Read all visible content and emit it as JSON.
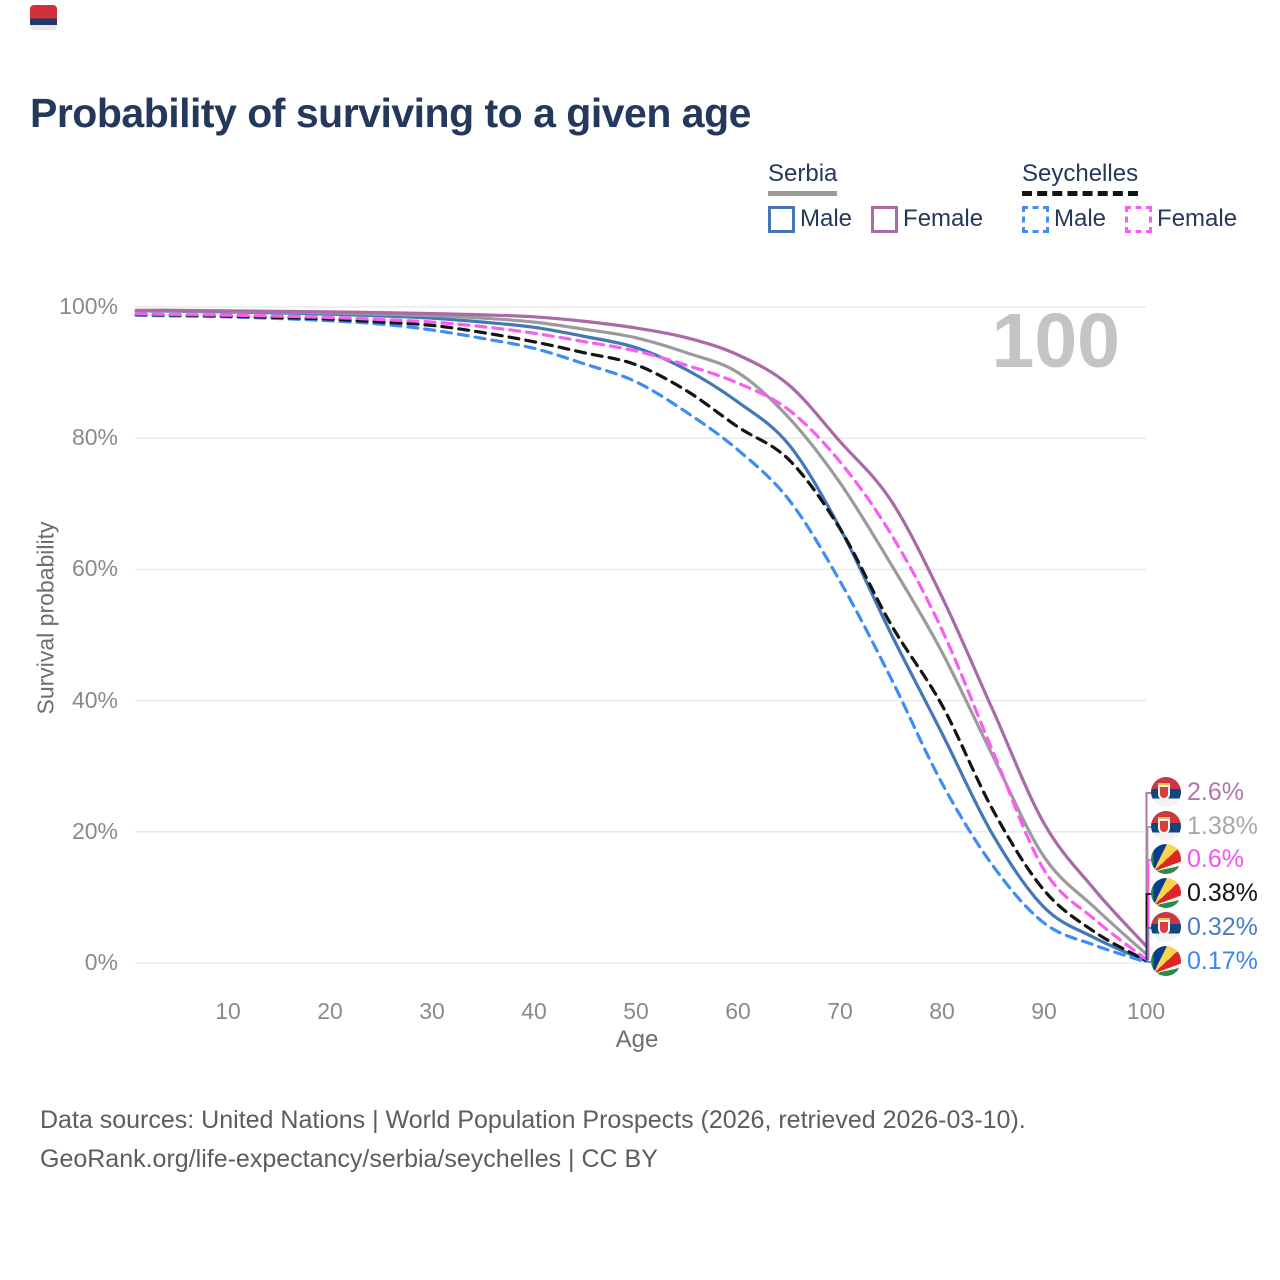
{
  "title": {
    "text": "Probability of surviving to a given age",
    "color": "#24385c"
  },
  "watermark": "100",
  "legend": {
    "groups": [
      {
        "label": "Serbia",
        "line_style": "solid",
        "line_color": "#9b9b9b",
        "items": [
          {
            "label": "Male",
            "color": "#4377b8",
            "dashed": false
          },
          {
            "label": "Female",
            "color": "#a96aa6",
            "dashed": false
          }
        ]
      },
      {
        "label": "Seychelles",
        "line_style": "dashed",
        "line_color": "#141414",
        "items": [
          {
            "label": "Male",
            "color": "#3f8df2",
            "dashed": true
          },
          {
            "label": "Female",
            "color": "#f95ef0",
            "dashed": true
          }
        ]
      }
    ]
  },
  "chart_data": {
    "type": "line",
    "title": "Probability of surviving to a given age",
    "xlabel": "Age",
    "ylabel": "Survival probability",
    "x_ticks": [
      10,
      20,
      30,
      40,
      50,
      60,
      70,
      80,
      90,
      100
    ],
    "y_ticks": [
      {
        "value": 0,
        "label": "0%"
      },
      {
        "value": 20,
        "label": "20%"
      },
      {
        "value": 40,
        "label": "40%"
      },
      {
        "value": 60,
        "label": "60%"
      },
      {
        "value": 80,
        "label": "80%"
      },
      {
        "value": 100,
        "label": "100%"
      }
    ],
    "xlim": [
      1,
      100
    ],
    "ylim": [
      0,
      100
    ],
    "grid": "horizontal-only",
    "ages": [
      1,
      5,
      10,
      15,
      20,
      25,
      30,
      35,
      40,
      45,
      50,
      55,
      60,
      65,
      70,
      75,
      80,
      85,
      90,
      95,
      100
    ],
    "series": [
      {
        "name": "Serbia Male",
        "country": "Serbia",
        "sex": "Male",
        "style": "solid",
        "color": "#4377b8",
        "values": [
          99.4,
          99.35,
          99.25,
          99.1,
          98.9,
          98.65,
          98.3,
          97.7,
          96.9,
          95.5,
          93.8,
          90.4,
          85.5,
          79.0,
          66.3,
          50.2,
          35.0,
          19.5,
          8.5,
          3.8,
          0.32
        ]
      },
      {
        "name": "Serbia",
        "country": "Serbia",
        "sex": "All",
        "style": "solid",
        "color": "#9b9b9b",
        "values": [
          99.45,
          99.4,
          99.35,
          99.25,
          99.1,
          98.9,
          98.7,
          98.3,
          97.7,
          96.6,
          95.3,
          93.0,
          90.0,
          83.1,
          73.2,
          60.8,
          47.4,
          31.5,
          16.2,
          8.4,
          1.38
        ]
      },
      {
        "name": "Seychelles Male",
        "country": "Seychelles",
        "sex": "Male",
        "style": "dashed",
        "color": "#3f8df2",
        "values": [
          98.75,
          98.65,
          98.5,
          98.25,
          97.9,
          97.4,
          96.5,
          95.2,
          93.7,
          91.3,
          88.6,
          83.9,
          78.2,
          70.6,
          58.2,
          43.4,
          27.4,
          14.8,
          6.1,
          2.7,
          0.17
        ]
      },
      {
        "name": "Seychelles",
        "country": "Seychelles",
        "sex": "All",
        "style": "dashed",
        "color": "#141414",
        "values": [
          98.85,
          98.75,
          98.6,
          98.4,
          98.15,
          97.7,
          97.2,
          96.1,
          94.7,
          93.0,
          91.2,
          87.2,
          81.7,
          76.7,
          66.2,
          51.6,
          39.3,
          23.3,
          11.1,
          4.7,
          0.38
        ]
      },
      {
        "name": "Seychelles Female",
        "country": "Seychelles",
        "sex": "Female",
        "style": "dashed",
        "color": "#f95ef0",
        "values": [
          98.95,
          98.85,
          98.75,
          98.6,
          98.4,
          98.1,
          97.7,
          97.0,
          96.0,
          94.7,
          93.3,
          91.1,
          88.4,
          84.3,
          76.4,
          65.4,
          50.8,
          32.2,
          14.2,
          6.6,
          0.6
        ]
      },
      {
        "name": "Serbia Female",
        "country": "Serbia",
        "sex": "Female",
        "style": "solid",
        "color": "#a96aa6",
        "values": [
          99.5,
          99.5,
          99.4,
          99.35,
          99.25,
          99.15,
          99.0,
          98.8,
          98.5,
          97.8,
          96.8,
          95.3,
          92.7,
          88.1,
          79.5,
          70.5,
          55.8,
          38.5,
          21.3,
          11.1,
          2.6
        ]
      }
    ],
    "end_labels": [
      {
        "series": "Serbia Female",
        "flag": "serbia",
        "text": "2.6%",
        "color": "#b274ad"
      },
      {
        "series": "Serbia",
        "flag": "serbia",
        "text": "1.38%",
        "color": "#a8a8a8"
      },
      {
        "series": "Seychelles Female",
        "flag": "seychelles",
        "text": "0.6%",
        "color": "#f94ff2"
      },
      {
        "series": "Seychelles",
        "flag": "seychelles",
        "text": "0.38%",
        "color": "#141414"
      },
      {
        "series": "Serbia Male",
        "flag": "serbia",
        "text": "0.32%",
        "color": "#4a7cc7"
      },
      {
        "series": "Seychelles Male",
        "flag": "seychelles",
        "text": "0.17%",
        "color": "#3b86f0"
      }
    ]
  },
  "footer": {
    "line1": "Data sources: United Nations | World Population Prospects (2026, retrieved 2026-03-10).",
    "line2": "GeoRank.org/life-expectancy/serbia/seychelles | CC BY"
  }
}
